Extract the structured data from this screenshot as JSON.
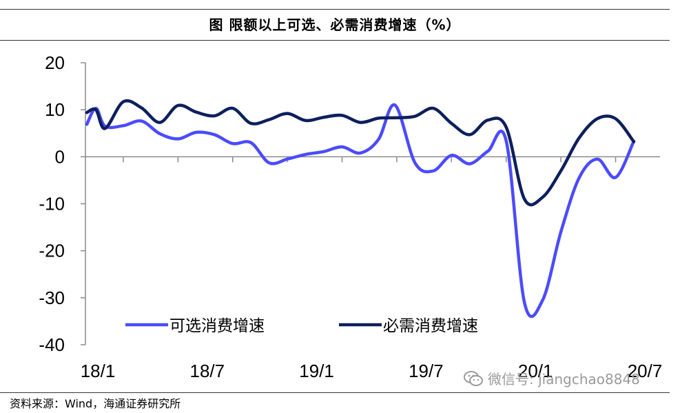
{
  "title": "图 限额以上可选、必需消费增速（%）",
  "source": "资料来源：Wind，海通证券研究所",
  "watermark": "微信号: jiangchao8848",
  "chart_data": {
    "type": "line",
    "ylim": [
      -40,
      20
    ],
    "yticks": [
      20,
      10,
      0,
      -10,
      -20,
      -30,
      -40
    ],
    "x_ticks": [
      {
        "label": "18/1",
        "month": 0
      },
      {
        "label": "18/7",
        "month": 6
      },
      {
        "label": "19/1",
        "month": 12
      },
      {
        "label": "19/7",
        "month": 18
      },
      {
        "label": "20/1",
        "month": 24
      },
      {
        "label": "20/7",
        "month": 30
      }
    ],
    "legend_position": "lower-left",
    "series": [
      {
        "name": "可选消费增速",
        "color": "#4B4BFF",
        "points": [
          [
            0,
            6.9
          ],
          [
            0.5,
            10.3
          ],
          [
            1,
            6.5
          ],
          [
            2,
            6.6
          ],
          [
            3,
            7.6
          ],
          [
            4,
            4.9
          ],
          [
            5,
            3.8
          ],
          [
            6,
            5.2
          ],
          [
            7,
            4.7
          ],
          [
            8,
            2.8
          ],
          [
            9,
            3.0
          ],
          [
            10,
            -1.3
          ],
          [
            11,
            -0.5
          ],
          [
            12,
            0.5
          ],
          [
            13,
            1.1
          ],
          [
            14,
            2.1
          ],
          [
            15,
            0.8
          ],
          [
            16,
            3.7
          ],
          [
            16.9,
            11.0
          ],
          [
            18,
            -1.3
          ],
          [
            19,
            -3.0
          ],
          [
            20,
            0.3
          ],
          [
            21,
            -1.5
          ],
          [
            22,
            1.2
          ],
          [
            23,
            3.4
          ],
          [
            24,
            -31.0
          ],
          [
            25,
            -30.5
          ],
          [
            26,
            -16.0
          ],
          [
            27,
            -4.5
          ],
          [
            28,
            -0.5
          ],
          [
            29,
            -4.4
          ],
          [
            30,
            3.3
          ]
        ]
      },
      {
        "name": "必需消费增速",
        "color": "#0D1F5C",
        "points": [
          [
            0,
            9.4
          ],
          [
            0.5,
            10.0
          ],
          [
            1,
            6.0
          ],
          [
            2,
            11.7
          ],
          [
            3,
            10.4
          ],
          [
            4,
            7.3
          ],
          [
            5,
            10.9
          ],
          [
            6,
            9.5
          ],
          [
            7,
            8.7
          ],
          [
            8,
            10.3
          ],
          [
            9,
            7.1
          ],
          [
            10,
            7.9
          ],
          [
            11,
            9.2
          ],
          [
            12,
            7.7
          ],
          [
            13,
            8.4
          ],
          [
            14,
            8.8
          ],
          [
            15,
            7.3
          ],
          [
            16,
            8.2
          ],
          [
            17,
            8.3
          ],
          [
            18,
            8.6
          ],
          [
            19,
            10.3
          ],
          [
            20,
            7.1
          ],
          [
            21,
            4.7
          ],
          [
            22,
            7.8
          ],
          [
            23,
            6.3
          ],
          [
            24,
            -9.0
          ],
          [
            25,
            -8.6
          ],
          [
            26,
            -3.0
          ],
          [
            27,
            4.0
          ],
          [
            28,
            8.1
          ],
          [
            29,
            8.1
          ],
          [
            30,
            3.2
          ]
        ]
      }
    ]
  }
}
